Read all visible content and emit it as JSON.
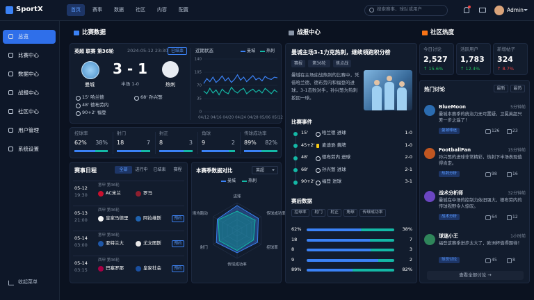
{
  "header": {
    "logo": "SportX",
    "nav": [
      "首页",
      "赛事",
      "数据",
      "社区",
      "内容",
      "配置"
    ],
    "search": "搜索赛事、球队或用户",
    "user": "Admin"
  },
  "sidebar": {
    "items": [
      "总览",
      "比赛中心",
      "数据中心",
      "战报中心",
      "社区中心",
      "用户管理",
      "系统设置"
    ],
    "collapse": "收起菜单"
  },
  "match": {
    "section": "比赛数据",
    "league": "英超 联赛 第36轮",
    "time": "2024-05-12 23:30",
    "status": "已结束",
    "home": "曼城",
    "away": "热刺",
    "score": "3 - 1",
    "half": "半场 1-0",
    "home_events": [
      "15' 哈兰德",
      "48' 德布劳内",
      "90+2' 福登"
    ],
    "away_events": [
      "68' 孙兴慜"
    ]
  },
  "stats": [
    {
      "name": "控球率",
      "home": 62,
      "away": 38,
      "home_label": "62%",
      "away_label": "38%"
    },
    {
      "name": "射门",
      "home": 18,
      "away": 7
    },
    {
      "name": "射正",
      "home": 8,
      "away": 3
    },
    {
      "name": "角球",
      "home": 9,
      "away": 2
    },
    {
      "name": "传球成功率",
      "home": 89,
      "away": 82,
      "home_label": "89%",
      "away_label": "82%"
    }
  ],
  "schedule": {
    "title": "赛事日程",
    "tabs": [
      "全部",
      "进行中",
      "已结束",
      "赛程"
    ],
    "rows": [
      {
        "date": "05-12",
        "time": "19:30",
        "league": "意甲 第36轮",
        "home": "AC米兰",
        "away": "罗马"
      },
      {
        "date": "05-13",
        "time": "21:00",
        "league": "西甲 第36轮",
        "home": "皇家马德里",
        "away": "阿拉维斯",
        "action": "预约"
      },
      {
        "date": "05-14",
        "time": "03:00",
        "league": "意甲 第36轮",
        "home": "亚特兰大",
        "away": "尤文图斯",
        "action": "预约"
      },
      {
        "date": "05-14",
        "time": "03:15",
        "league": "西甲 第36轮",
        "home": "巴塞罗那",
        "away": "皇家社会",
        "action": "预约"
      }
    ]
  },
  "report": {
    "section": "战报中心",
    "headline": "曼城主场3-1力克热刺，继续领跑积分榜",
    "tags": [
      "赛报",
      "第36轮",
      "焦点战"
    ],
    "body": "曼城在主场迎战热刺的比赛中，凭借哈兰德、德布劳内和福登的进球，3-1击败对手，孙兴慜为热刺扳回一球。",
    "events_title": "比赛事件",
    "events": [
      {
        "minute": "15'",
        "player": "哈兰德 进球",
        "score": "1-0",
        "kind": "goal"
      },
      {
        "minute": "45+2'",
        "player": "麦迪逊 黄牌",
        "score": "1-0",
        "kind": "card"
      },
      {
        "minute": "48'",
        "player": "德布劳内 进球",
        "score": "2-0",
        "kind": "goal"
      },
      {
        "minute": "68'",
        "player": "孙兴慜 进球",
        "score": "2-1",
        "kind": "goal"
      },
      {
        "minute": "90+2'",
        "player": "福登 进球",
        "score": "3-1",
        "kind": "goal"
      }
    ],
    "stats_title": "赛后数据"
  },
  "community": {
    "section": "社区热度",
    "kpis": [
      {
        "label": "今日讨论",
        "value": "2,527",
        "change": "↑ 15.6%",
        "color": "#22c55e"
      },
      {
        "label": "活跃用户",
        "value": "1,783",
        "change": "↑ 12.4%",
        "color": "#22c55e"
      },
      {
        "label": "新增帖子",
        "value": "324",
        "change": "↑ 8.7%",
        "color": "#ef4444"
      }
    ],
    "discussion": {
      "title": "热门讨论",
      "tabs": [
        "最新",
        "最热"
      ],
      "posts": [
        {
          "user": "BlueMoon",
          "time": "5分钟前",
          "text": "曼城本赛季的统治力无可置疑，卫冕英超只差一步之遥了！",
          "tag": "曼城球迷",
          "comments": 126,
          "likes": 23
        },
        {
          "user": "FootballFan",
          "time": "15分钟前",
          "text": "孙兴慜的进球非常精彩，热刺下半场表现值得肯定。",
          "tag": "热刺分析",
          "comments": 98,
          "likes": 16
        },
        {
          "user": "战术分析师",
          "time": "32分钟前",
          "text": "曼城在中场的控制力依旧强大，德布劳内的传球视野令人惊叹。",
          "tag": "战术分析",
          "comments": 64,
          "likes": 12
        },
        {
          "user": "球迷小王",
          "time": "1小时前",
          "text": "福登这赛季进步太大了，欧洲杯值得期待！",
          "tag": "球员讨论",
          "comments": 45,
          "likes": 8
        }
      ],
      "more": "查看全部讨论 →"
    }
  },
  "chart_data": [
    {
      "type": "line",
      "title": "近期状态",
      "categories": [
        "04/12",
        null,
        null,
        null,
        "04/16",
        null,
        null,
        null,
        "04/20",
        null,
        null,
        null,
        "04/24",
        null,
        null,
        null,
        "04/28",
        null,
        null,
        null,
        "05/06",
        null,
        null,
        null,
        "05/12"
      ],
      "series": [
        {
          "name": "曼城",
          "color": "#3b82f6",
          "values": [
            75,
            88,
            80,
            92,
            78,
            85,
            95,
            82,
            90,
            78,
            86,
            98,
            84,
            92,
            80,
            88,
            96,
            85,
            90,
            82,
            94,
            88,
            86,
            92,
            90
          ]
        },
        {
          "name": "热刺",
          "color": "#14b8a6",
          "values": [
            55,
            48,
            62,
            50,
            58,
            45,
            60,
            52,
            48,
            65,
            55,
            50,
            58,
            62,
            48,
            55,
            60,
            52,
            58,
            50,
            62,
            55,
            48,
            58,
            52
          ]
        }
      ],
      "ylim": [
        0,
        140
      ],
      "yticks": [
        0,
        35,
        70,
        105,
        140
      ],
      "grid": true
    },
    {
      "type": "radar",
      "title": "本赛季数据对比",
      "filter": "英超",
      "categories": [
        "进球",
        "传球成功率",
        "控球率",
        "传球成功率",
        "射门",
        "场均跑动"
      ],
      "series": [
        {
          "name": "曼城",
          "color": "#3b82f6",
          "values": [
            90,
            88,
            85,
            80,
            86,
            82
          ]
        },
        {
          "name": "热刺",
          "color": "#14b8a6",
          "values": [
            70,
            75,
            68,
            72,
            74,
            78
          ]
        }
      ],
      "ylim": [
        0,
        100
      ]
    }
  ]
}
